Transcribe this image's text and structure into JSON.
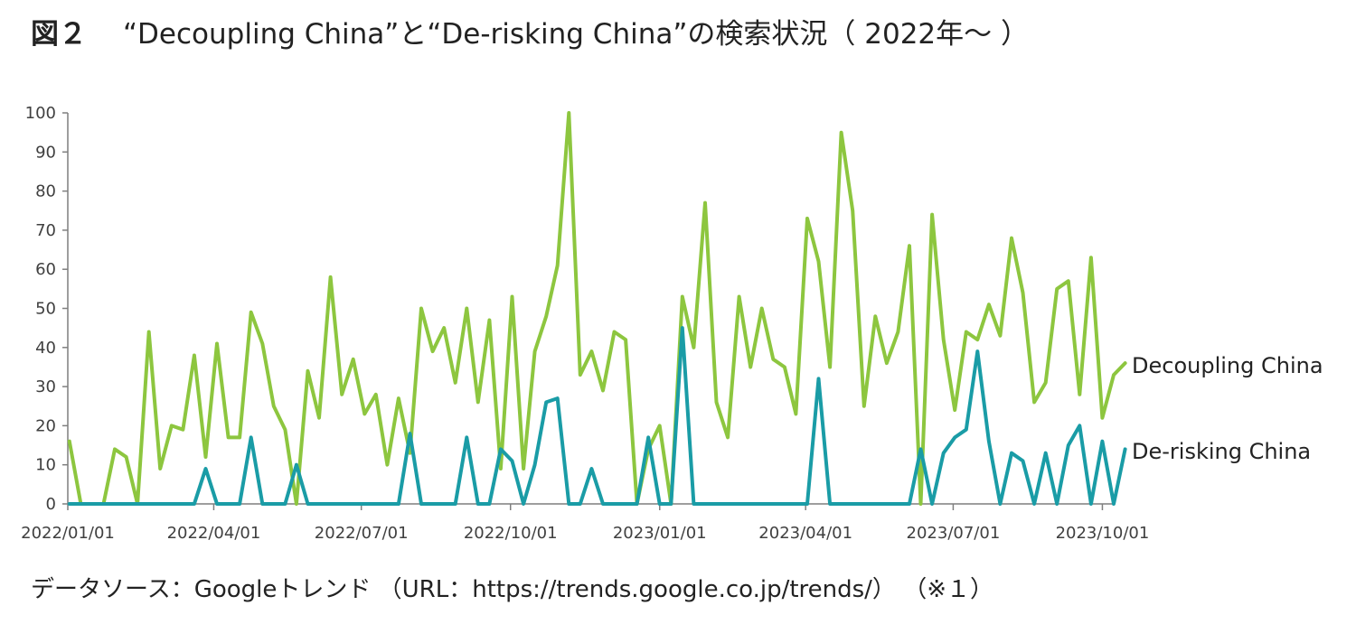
{
  "title": {
    "figure_label": "図２",
    "text": "“Decoupling China”と“De-risking China”の検索状況（ 2022年～ ）"
  },
  "source_note": "データソース：Googleトレンド （URL：https://trends.google.co.jp/trends/） （※１）",
  "chart_data": {
    "type": "line",
    "title": "“Decoupling China”と“De-risking China”の検索状況（ 2022年～ ）",
    "xlabel": "",
    "ylabel": "",
    "ylim": [
      0,
      100
    ],
    "y_ticks": [
      0,
      10,
      20,
      30,
      40,
      50,
      60,
      70,
      80,
      90,
      100
    ],
    "x_tick_labels": [
      "2022/01/01",
      "2022/04/01",
      "2022/07/01",
      "2022/10/01",
      "2023/01/01",
      "2023/04/01",
      "2023/07/01",
      "2023/10/01"
    ],
    "x_start": "2022-01-02",
    "x_step_days": 7,
    "grid": false,
    "legend": "direct labels at right end of lines",
    "colors": {
      "decoupling": "#8dc63f",
      "derisking": "#1a9ca6",
      "axis": "#7f7f7f"
    },
    "series": [
      {
        "name": "Decoupling China",
        "color": "#8dc63f",
        "values": [
          16,
          0,
          0,
          0,
          14,
          12,
          0,
          44,
          9,
          20,
          19,
          38,
          12,
          41,
          17,
          17,
          49,
          41,
          25,
          19,
          0,
          34,
          22,
          58,
          28,
          37,
          23,
          28,
          10,
          27,
          13,
          50,
          39,
          45,
          31,
          50,
          26,
          47,
          9,
          53,
          9,
          39,
          48,
          61,
          100,
          33,
          39,
          29,
          44,
          42,
          0,
          14,
          20,
          0,
          53,
          40,
          77,
          26,
          17,
          53,
          35,
          50,
          37,
          35,
          23,
          73,
          62,
          35,
          95,
          75,
          25,
          48,
          36,
          44,
          66,
          0,
          74,
          42,
          24,
          44,
          42,
          51,
          43,
          68,
          54,
          26,
          31,
          55,
          57,
          28,
          63,
          22,
          33,
          36
        ]
      },
      {
        "name": "De-risking China",
        "color": "#1a9ca6",
        "values": [
          0,
          0,
          0,
          0,
          0,
          0,
          0,
          0,
          0,
          0,
          0,
          0,
          9,
          0,
          0,
          0,
          17,
          0,
          0,
          0,
          10,
          0,
          0,
          0,
          0,
          0,
          0,
          0,
          0,
          0,
          18,
          0,
          0,
          0,
          0,
          17,
          0,
          0,
          14,
          11,
          0,
          10,
          26,
          27,
          0,
          0,
          9,
          0,
          0,
          0,
          0,
          17,
          0,
          0,
          45,
          0,
          0,
          0,
          0,
          0,
          0,
          0,
          0,
          0,
          0,
          0,
          32,
          0,
          0,
          0,
          0,
          0,
          0,
          0,
          0,
          14,
          0,
          13,
          17,
          19,
          39,
          16,
          0,
          13,
          11,
          0,
          13,
          0,
          15,
          20,
          0,
          16,
          0,
          14
        ]
      }
    ]
  }
}
